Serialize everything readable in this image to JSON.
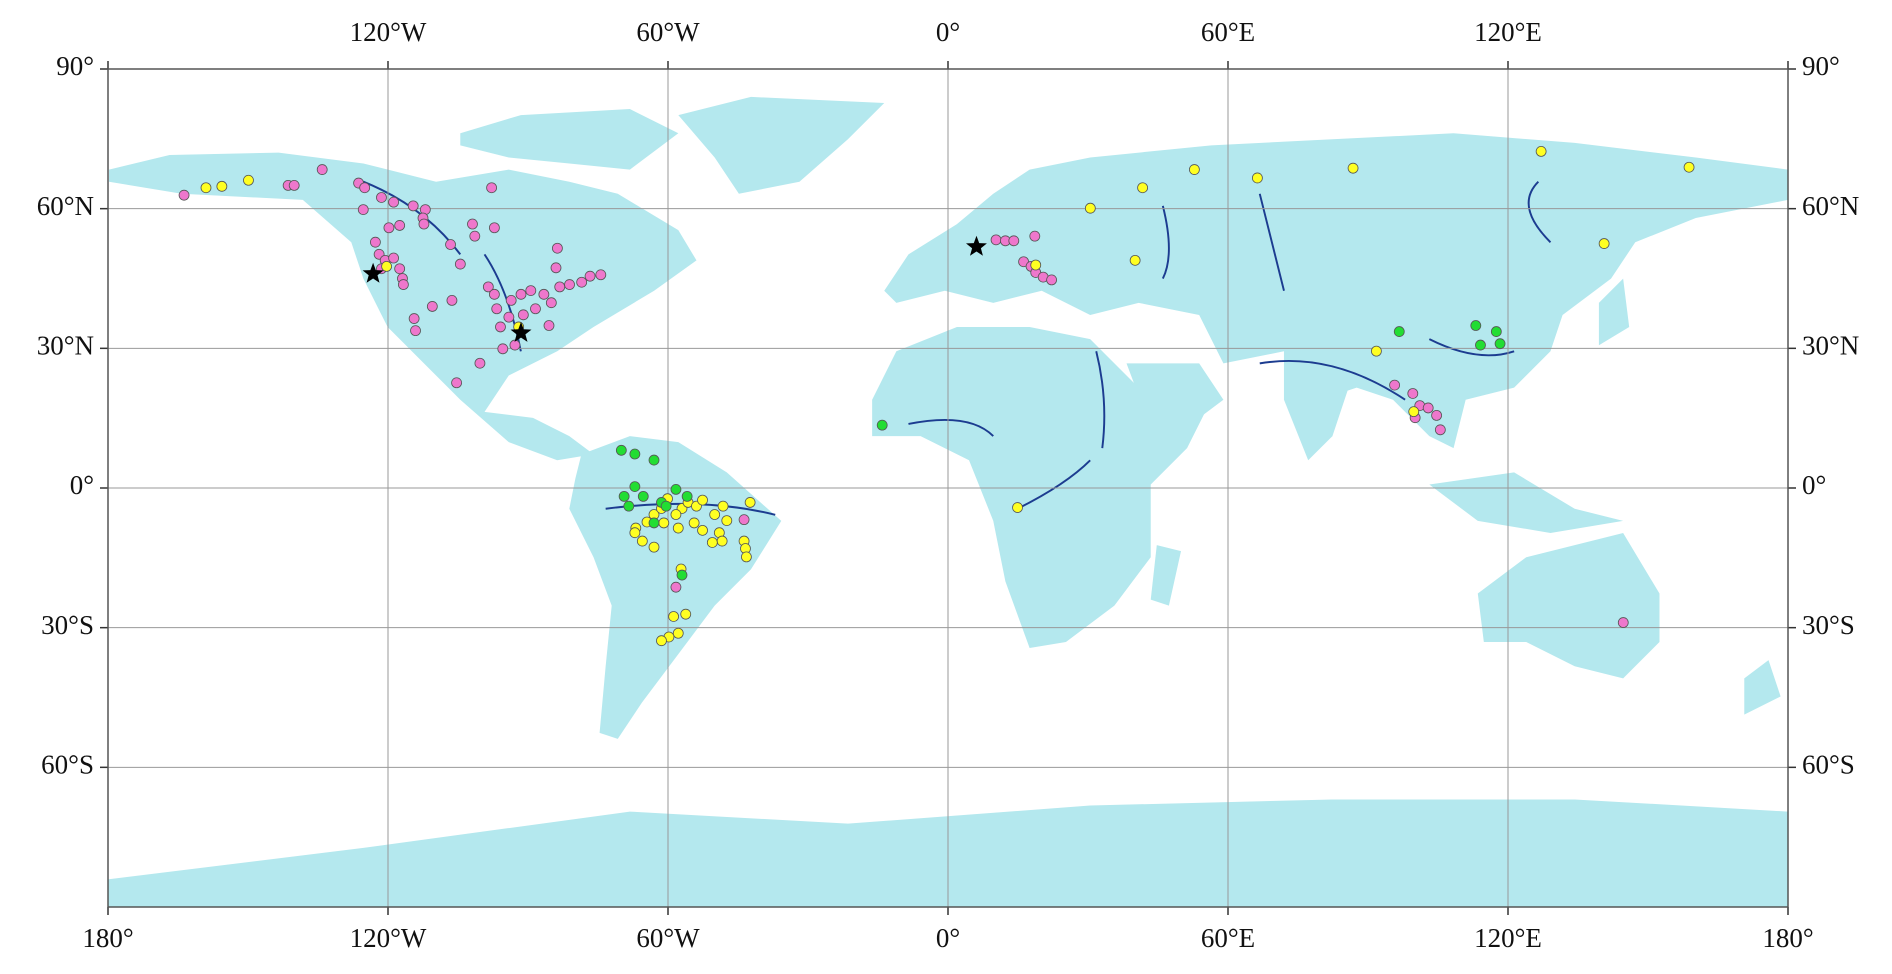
{
  "chart_data": {
    "type": "scatter",
    "xlim": [
      -180,
      180
    ],
    "ylim": [
      -90,
      90
    ],
    "xticks": [
      {
        "value": -180,
        "label": "180°"
      },
      {
        "value": -120,
        "label": "120°W"
      },
      {
        "value": -60,
        "label": "60°W"
      },
      {
        "value": 0,
        "label": "0°"
      },
      {
        "value": 60,
        "label": "60°E"
      },
      {
        "value": 120,
        "label": "120°E"
      },
      {
        "value": 180,
        "label": "180°"
      }
    ],
    "yticks": [
      {
        "value": 90,
        "label": "90°"
      },
      {
        "value": 60,
        "label": "60°N"
      },
      {
        "value": 30,
        "label": "30°N"
      },
      {
        "value": 0,
        "label": "0°"
      },
      {
        "value": -30,
        "label": "30°S"
      },
      {
        "value": -60,
        "label": "60°S"
      }
    ],
    "grid": true,
    "series": [
      {
        "color": "#ee77cc",
        "marker": "circle",
        "lon": [
          -163.7,
          -141.4,
          -140.1,
          -134.1,
          -126.3,
          -125.0,
          -121.4,
          -118.8,
          -114.6,
          -112.0,
          -112.5,
          -112.3,
          -117.5,
          -119.8,
          -125.3,
          -122.7,
          -121.9,
          -120.6,
          -118.8,
          -117.5,
          -116.9,
          -116.7,
          -121.4,
          -110.5,
          -114.4,
          -114.1,
          -106.3,
          -101.9,
          -101.4,
          -106.6,
          -104.5,
          -97.8,
          -97.2,
          -98.5,
          -97.2,
          -96.7,
          -95.9,
          -94.1,
          -93.6,
          -91.5,
          -89.4,
          -88.4,
          -86.6,
          -85.0,
          -83.7,
          -83.2,
          -84.0,
          -81.1,
          -78.5,
          -76.7,
          -74.4,
          -85.5,
          -95.4,
          -92.8,
          -100.3,
          -105.3,
          -91.0,
          10.3,
          12.3,
          14.1,
          18.6,
          16.2,
          17.8,
          18.8,
          20.4,
          22.2,
          95.7,
          99.6,
          101.1,
          102.9,
          104.7,
          105.5,
          100.1,
          144.7,
          -43.7,
          -58.3
        ],
        "lat": [
          62.9,
          65.0,
          65.0,
          68.4,
          65.5,
          64.5,
          62.4,
          61.4,
          60.6,
          59.8,
          58.0,
          56.7,
          56.4,
          55.9,
          59.8,
          52.8,
          50.2,
          48.9,
          49.4,
          47.1,
          45.0,
          43.7,
          47.1,
          39.0,
          36.4,
          33.8,
          40.3,
          56.7,
          54.1,
          52.3,
          48.1,
          64.5,
          55.9,
          43.2,
          41.6,
          38.5,
          34.6,
          36.7,
          40.3,
          41.6,
          42.4,
          38.5,
          41.6,
          39.8,
          51.5,
          43.2,
          47.3,
          43.7,
          44.2,
          45.5,
          45.8,
          34.9,
          29.9,
          30.7,
          26.8,
          22.6,
          37.2,
          53.3,
          53.1,
          53.1,
          54.1,
          48.6,
          47.6,
          46.3,
          45.3,
          44.7,
          22.1,
          20.3,
          17.7,
          17.2,
          15.6,
          12.5,
          15.1,
          -28.9,
          -6.8,
          -21.3
        ]
      },
      {
        "color": "#ffff22",
        "marker": "circle",
        "lon": [
          -159.0,
          -155.6,
          -149.9,
          -120.3,
          -92.0,
          30.5,
          41.7,
          52.8,
          66.3,
          86.8,
          127.1,
          158.8,
          140.6,
          40.1,
          18.8,
          91.8,
          99.8,
          14.9,
          -64.5,
          -63.0,
          -61.4,
          -60.1,
          -57.0,
          -55.7,
          -53.9,
          -52.6,
          -50.0,
          -48.2,
          -47.4,
          -49.0,
          -48.4,
          -50.5,
          -52.6,
          -54.4,
          -57.8,
          -60.9,
          -66.9,
          -67.1,
          -65.5,
          -63.0,
          -58.3,
          -42.4,
          -43.7,
          -43.4,
          -43.2,
          -57.2,
          -58.8,
          -56.2,
          -57.8,
          -59.8,
          -61.4
        ],
        "lat": [
          64.5,
          64.8,
          66.1,
          47.6,
          34.6,
          60.1,
          64.5,
          68.4,
          66.6,
          68.7,
          72.3,
          68.9,
          52.5,
          48.9,
          47.9,
          29.4,
          16.4,
          -4.2,
          -7.3,
          -5.7,
          -4.4,
          -2.3,
          -4.4,
          -3.1,
          -3.9,
          -2.6,
          -5.7,
          -3.9,
          -7.0,
          -9.6,
          -11.4,
          -11.7,
          -9.1,
          -7.5,
          -8.6,
          -7.5,
          -8.6,
          -9.6,
          -11.4,
          -12.7,
          -5.7,
          -3.1,
          -11.4,
          -13.0,
          -14.8,
          -17.4,
          -27.6,
          -27.1,
          -31.2,
          -32.0,
          -32.8
        ]
      },
      {
        "color": "#22dd33",
        "marker": "circle",
        "lon": [
          -14.1,
          -70.0,
          -67.1,
          -63.0,
          -67.1,
          -69.4,
          -68.4,
          -65.3,
          -61.4,
          -60.4,
          -58.3,
          -55.9,
          -63.0,
          -57.0,
          96.7,
          113.1,
          117.5,
          118.3,
          114.1
        ],
        "lat": [
          13.5,
          8.1,
          7.3,
          6.0,
          0.3,
          -1.8,
          -3.9,
          -1.8,
          -3.1,
          -3.9,
          -0.3,
          -1.8,
          -7.5,
          -18.7,
          33.6,
          34.9,
          33.6,
          31.0,
          30.7
        ]
      },
      {
        "color": "#000000",
        "marker": "star",
        "lon": [
          -123.2,
          -91.5,
          6.1
        ],
        "lat": [
          46.0,
          33.3,
          51.8
        ]
      }
    ]
  }
}
